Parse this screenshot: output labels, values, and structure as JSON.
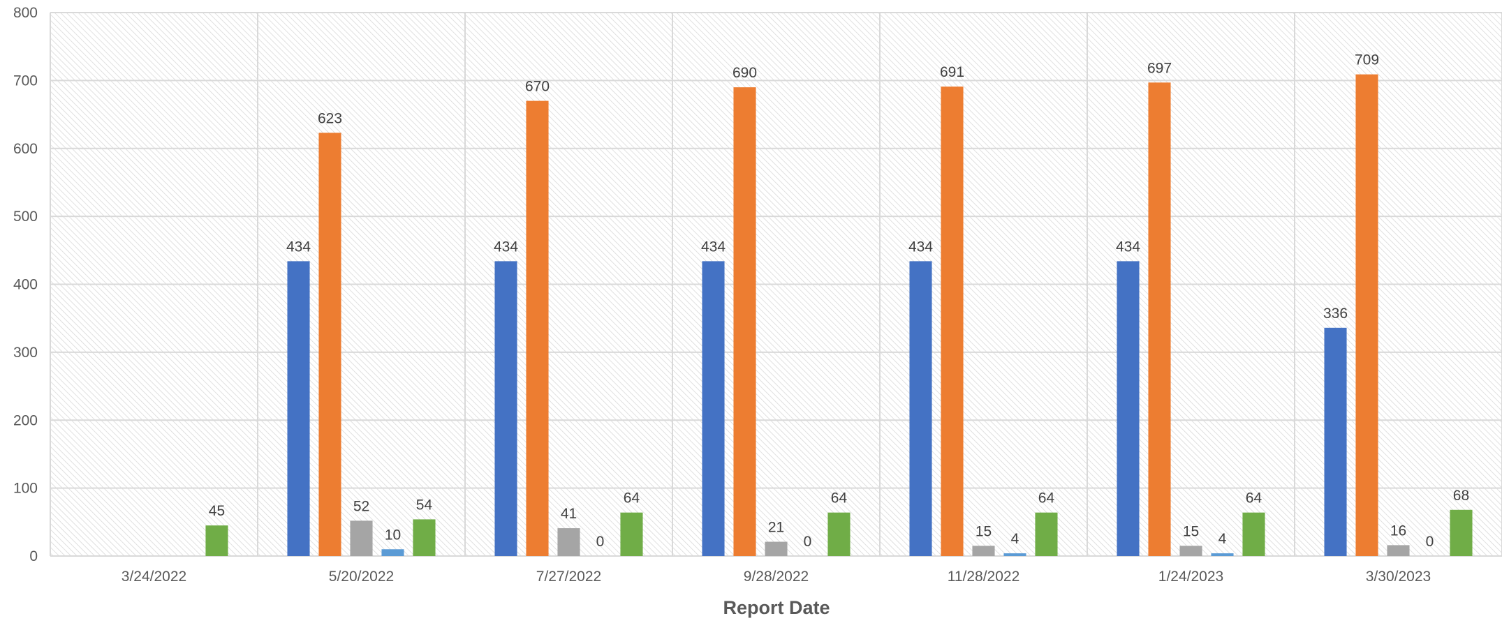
{
  "chart_data": {
    "type": "bar",
    "title": "",
    "xlabel": "Report Date",
    "ylabel": "",
    "ylim": [
      0,
      800
    ],
    "yticks": [
      0,
      100,
      200,
      300,
      400,
      500,
      600,
      700,
      800
    ],
    "grid": true,
    "legend": "none",
    "categories": [
      "3/24/2022",
      "5/20/2022",
      "7/27/2022",
      "9/28/2022",
      "11/28/2022",
      "1/24/2023",
      "3/30/2023"
    ],
    "series": [
      {
        "color": "#4472C4",
        "values": [
          null,
          434,
          434,
          434,
          434,
          434,
          336
        ]
      },
      {
        "color": "#ED7D31",
        "values": [
          null,
          623,
          670,
          690,
          691,
          697,
          709
        ]
      },
      {
        "color": "#A5A5A5",
        "values": [
          null,
          52,
          41,
          21,
          15,
          15,
          16
        ]
      },
      {
        "color": "#5B9BD5",
        "values": [
          null,
          10,
          0,
          0,
          4,
          4,
          0
        ]
      },
      {
        "color": "#70AD47",
        "values": [
          45,
          54,
          64,
          64,
          64,
          64,
          68
        ]
      }
    ]
  }
}
